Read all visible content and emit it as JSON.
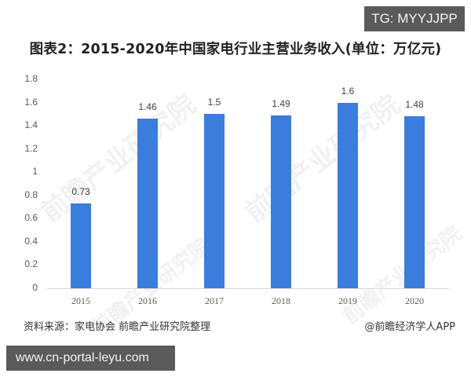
{
  "overlay": {
    "tg_badge": "TG: MYYJJPP",
    "url_badge": "www.cn-portal-leyu.com"
  },
  "header": {
    "title": "图表2：2015-2020年中国家电行业主营业务收入(单位：万亿元)"
  },
  "watermark": {
    "text": "前瞻产业研究院"
  },
  "footer": {
    "source": "资料来源：家电协会 前瞻产业研究院整理",
    "credit": "@前瞻经济学人APP"
  },
  "colors": {
    "bar": "#3b7ddd",
    "badge_bg": "#5a5a5a"
  },
  "chart_data": {
    "type": "bar",
    "title": "图表2：2015-2020年中国家电行业主营业务收入(单位：万亿元)",
    "xlabel": "",
    "ylabel": "",
    "categories": [
      "2015",
      "2016",
      "2017",
      "2018",
      "2019",
      "2020"
    ],
    "values": [
      0.73,
      1.46,
      1.5,
      1.49,
      1.6,
      1.48
    ],
    "value_labels": [
      "0.73",
      "1.46",
      "1.5",
      "1.49",
      "1.6",
      "1.48"
    ],
    "ylim": [
      0,
      1.8
    ],
    "yticks": [
      "0",
      "0.2",
      "0.4",
      "0.6",
      "0.8",
      "1",
      "1.2",
      "1.4",
      "1.6",
      "1.8"
    ],
    "grid": false,
    "legend": null,
    "unit": "万亿元"
  }
}
